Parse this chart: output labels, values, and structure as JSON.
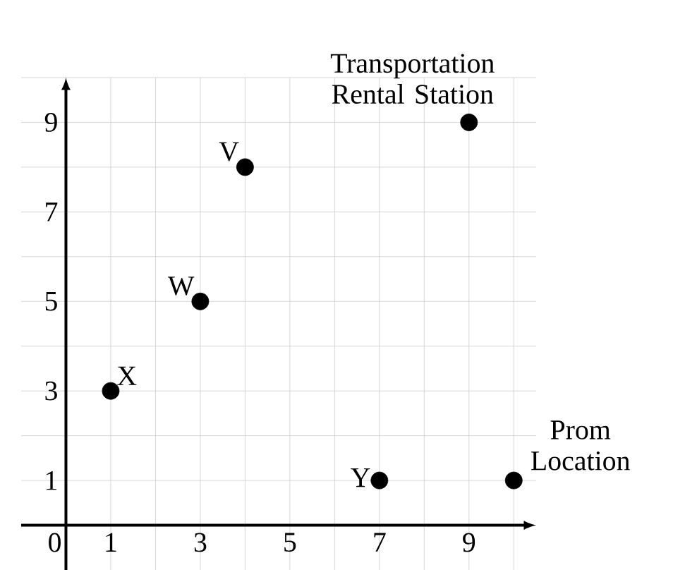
{
  "chart_data": {
    "type": "scatter",
    "x": [
      1,
      3,
      4,
      7,
      9,
      10
    ],
    "values": [
      3,
      5,
      8,
      1,
      9,
      1
    ],
    "color": "#000000",
    "marker": "circle",
    "grid": true,
    "xlim": [
      -1,
      10.5
    ],
    "ylim": [
      -1,
      10
    ],
    "xticks": [
      0,
      1,
      {
        "value": 2,
        "label": null
      },
      3,
      {
        "value": 4,
        "label": null
      },
      5,
      {
        "value": 6,
        "label": null
      },
      7,
      {
        "value": 8,
        "label": null
      },
      9,
      {
        "value": 10,
        "label": null
      }
    ],
    "yticks": [
      {
        "value": 0,
        "label": null
      },
      1,
      {
        "value": 2,
        "label": null
      },
      3,
      {
        "value": 4,
        "label": null
      },
      5,
      {
        "value": 6,
        "label": null
      },
      7,
      {
        "value": 8,
        "label": null
      },
      9,
      {
        "value": 10,
        "label": null
      }
    ],
    "annotations": [
      {
        "text": "X",
        "x": 1,
        "y": 3
      },
      {
        "text": "W",
        "x": 3,
        "y": 5
      },
      {
        "text": "V",
        "x": 4,
        "y": 8
      },
      {
        "text": "Y",
        "x": 7,
        "y": 1
      },
      {
        "text": "Transportation Rental Station",
        "x": 9,
        "y": 9
      },
      {
        "text": "Prom Location",
        "x": 10,
        "y": 1
      }
    ]
  }
}
